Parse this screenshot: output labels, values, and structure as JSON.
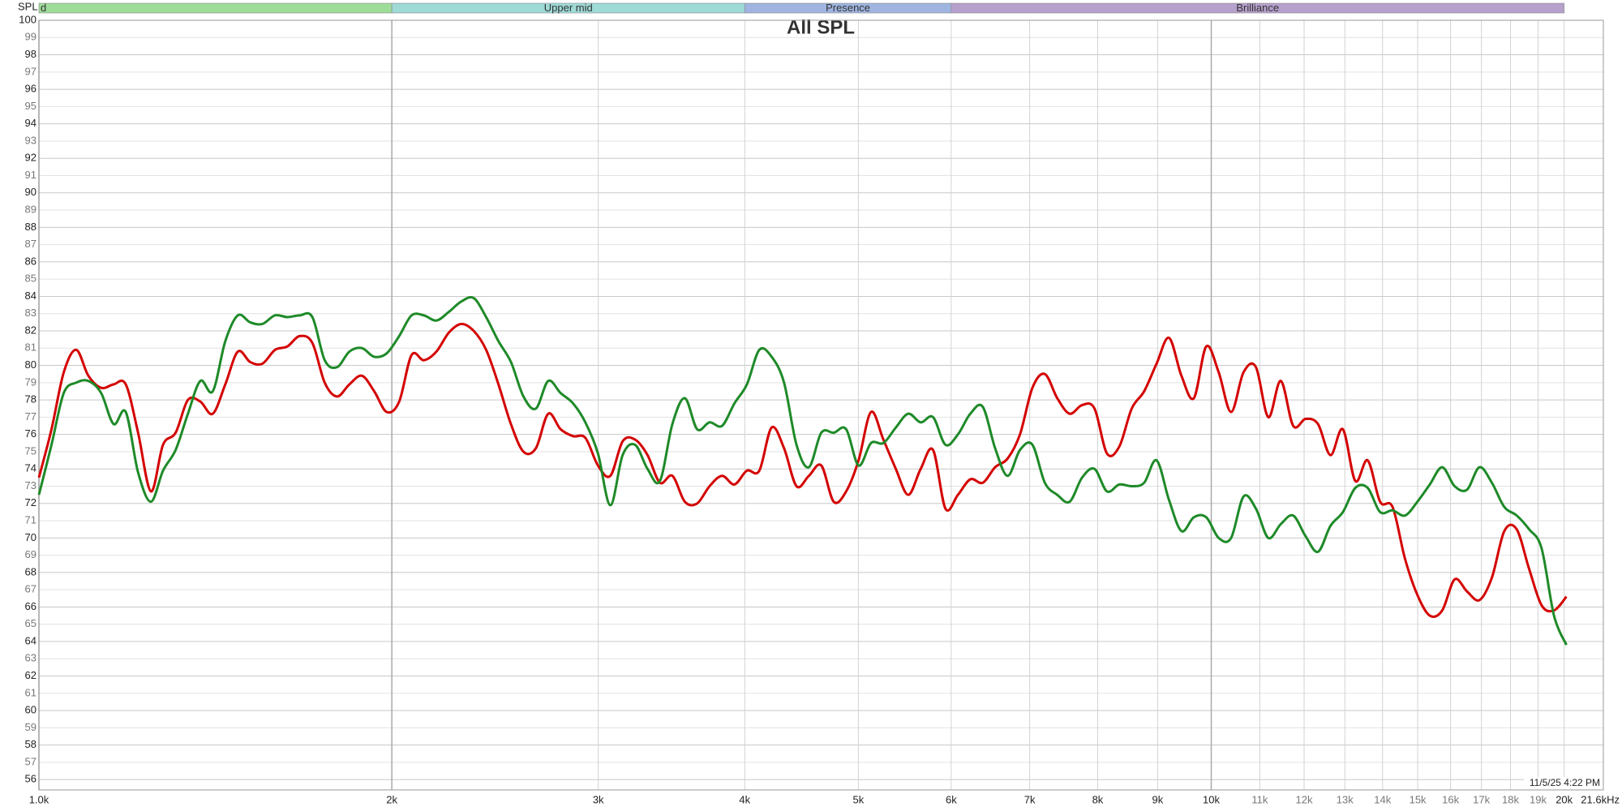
{
  "chart_data": {
    "type": "line",
    "title": "All SPL",
    "y_label": "SPL",
    "timestamp": "11/5/25 4:22 PM",
    "x_log": true,
    "grid": true,
    "xlim": [
      1000,
      21600
    ],
    "ylim": [
      55.4,
      100
    ],
    "xticks": [
      {
        "value": 1000,
        "label": "1.0k"
      },
      {
        "value": 2000,
        "label": "2k"
      },
      {
        "value": 3000,
        "label": "3k"
      },
      {
        "value": 4000,
        "label": "4k"
      },
      {
        "value": 5000,
        "label": "5k"
      },
      {
        "value": 6000,
        "label": "6k"
      },
      {
        "value": 7000,
        "label": "7k"
      },
      {
        "value": 8000,
        "label": "8k"
      },
      {
        "value": 9000,
        "label": "9k"
      },
      {
        "value": 10000,
        "label": "10k"
      },
      {
        "value": 11000,
        "label": "11k"
      },
      {
        "value": 12000,
        "label": "12k"
      },
      {
        "value": 13000,
        "label": "13k"
      },
      {
        "value": 14000,
        "label": "14k"
      },
      {
        "value": 15000,
        "label": "15k"
      },
      {
        "value": 16000,
        "label": "16k"
      },
      {
        "value": 17000,
        "label": "17k"
      },
      {
        "value": 18000,
        "label": "18k"
      },
      {
        "value": 19000,
        "label": "19k"
      },
      {
        "value": 20000,
        "label": "20k"
      },
      {
        "value": 21600,
        "label": "21.6kHz"
      }
    ],
    "yticks": [
      56,
      57,
      58,
      59,
      60,
      61,
      62,
      63,
      64,
      65,
      66,
      67,
      68,
      69,
      70,
      71,
      72,
      73,
      74,
      75,
      76,
      77,
      78,
      79,
      80,
      81,
      82,
      83,
      84,
      85,
      86,
      87,
      88,
      89,
      90,
      91,
      92,
      93,
      94,
      95,
      96,
      97,
      98,
      99,
      100
    ],
    "bands": [
      {
        "label": "d",
        "from": 1000,
        "to": 2000,
        "color": "#9edc9a"
      },
      {
        "label": "Upper mid",
        "from": 2000,
        "to": 4000,
        "color": "#9edad6"
      },
      {
        "label": "Presence",
        "from": 4000,
        "to": 6000,
        "color": "#9fb5e0"
      },
      {
        "label": "Brilliance",
        "from": 6000,
        "to": 20000,
        "color": "#b6a0cc"
      }
    ],
    "x": [
      1000,
      1025,
      1050,
      1076,
      1102,
      1130,
      1158,
      1186,
      1215,
      1246,
      1276,
      1308,
      1340,
      1373,
      1407,
      1442,
      1478,
      1514,
      1551,
      1590,
      1629,
      1669,
      1711,
      1753,
      1796,
      1840,
      1886,
      1932,
      1980,
      2029,
      2079,
      2130,
      2183,
      2237,
      2292,
      2349,
      2407,
      2466,
      2527,
      2590,
      2654,
      2719,
      2786,
      2855,
      2925,
      2998,
      3072,
      3147,
      3225,
      3305,
      3386,
      3470,
      3556,
      3643,
      3733,
      3826,
      3920,
      4017,
      4116,
      4217,
      4321,
      4428,
      4537,
      4649,
      4764,
      4882,
      5002,
      5126,
      5252,
      5382,
      5515,
      5651,
      5790,
      5933,
      6080,
      6230,
      6384,
      6541,
      6703,
      6868,
      7038,
      7212,
      7390,
      7572,
      7759,
      7951,
      8147,
      8348,
      8554,
      8765,
      8982,
      9204,
      9431,
      9664,
      9902,
      10147,
      10397,
      10654,
      10917,
      11186,
      11463,
      11746,
      12036,
      12333,
      12638,
      12950,
      13270,
      13597,
      13933,
      14277,
      14630,
      14991,
      15361,
      15740,
      16129,
      16527,
      16935,
      17353,
      17782,
      18221,
      18671,
      19132,
      19605,
      20089
    ],
    "series": [
      {
        "color": "#d40000",
        "values": [
          73.5,
          76.3,
          79.6,
          80.9,
          79.4,
          78.7,
          78.9,
          78.9,
          76.1,
          72.7,
          75.4,
          76.1,
          78.0,
          77.9,
          77.2,
          78.9,
          80.8,
          80.2,
          80.1,
          80.9,
          81.1,
          81.7,
          81.3,
          79.0,
          78.2,
          78.9,
          79.4,
          78.5,
          77.3,
          77.9,
          80.6,
          80.3,
          80.8,
          81.9,
          82.4,
          82.0,
          80.9,
          78.9,
          76.6,
          75.0,
          75.2,
          77.2,
          76.3,
          75.9,
          75.8,
          74.2,
          73.6,
          75.6,
          75.7,
          74.8,
          73.2,
          73.6,
          72.1,
          72.0,
          73.0,
          73.6,
          73.1,
          73.9,
          73.9,
          76.4,
          75.2,
          73.0,
          73.6,
          74.2,
          72.1,
          72.7,
          74.5,
          77.3,
          75.7,
          74.0,
          72.5,
          74.0,
          75.1,
          71.7,
          72.5,
          73.4,
          73.2,
          74.1,
          74.6,
          76.0,
          78.7,
          79.5,
          78.1,
          77.2,
          77.7,
          77.5,
          74.9,
          75.3,
          77.5,
          78.5,
          80.1,
          81.6,
          79.4,
          78.1,
          81.1,
          79.6,
          77.3,
          79.6,
          79.9,
          77.0,
          79.1,
          76.5,
          76.9,
          76.6,
          74.8,
          76.3,
          73.3,
          74.5,
          72.1,
          71.8,
          68.8,
          66.7,
          65.5,
          65.8,
          67.6,
          66.9,
          66.4,
          67.7,
          70.4,
          70.5,
          68.2,
          66.1,
          65.8,
          66.6
        ]
      },
      {
        "color": "#1e8a28",
        "values": [
          72.5,
          75.4,
          78.4,
          79.0,
          79.1,
          78.4,
          76.6,
          77.3,
          73.8,
          72.1,
          73.9,
          75.1,
          77.2,
          79.1,
          78.5,
          81.4,
          82.9,
          82.5,
          82.4,
          82.9,
          82.8,
          82.9,
          82.8,
          80.3,
          79.9,
          80.8,
          81.0,
          80.5,
          80.7,
          81.7,
          82.9,
          82.9,
          82.6,
          83.1,
          83.7,
          83.9,
          82.8,
          81.4,
          80.2,
          78.2,
          77.5,
          79.1,
          78.4,
          77.8,
          76.7,
          74.9,
          71.9,
          74.8,
          75.4,
          74.0,
          73.3,
          76.6,
          78.1,
          76.3,
          76.7,
          76.5,
          77.8,
          78.9,
          80.9,
          80.5,
          79.0,
          75.4,
          74.1,
          76.1,
          76.1,
          76.3,
          74.2,
          75.5,
          75.5,
          76.4,
          77.2,
          76.7,
          77.0,
          75.4,
          76.0,
          77.2,
          77.6,
          75.2,
          73.6,
          75.1,
          75.4,
          73.2,
          72.5,
          72.1,
          73.5,
          74.0,
          72.7,
          73.1,
          73.0,
          73.2,
          74.5,
          72.2,
          70.4,
          71.2,
          71.2,
          70.0,
          70.0,
          72.4,
          71.7,
          70.0,
          70.8,
          71.3,
          70.1,
          69.2,
          70.7,
          71.5,
          72.9,
          72.9,
          71.5,
          71.6,
          71.3,
          72.1,
          73.1,
          74.1,
          73.0,
          72.8,
          74.1,
          73.2,
          71.8,
          71.3,
          70.5,
          69.4,
          65.5,
          63.8
        ]
      }
    ]
  }
}
